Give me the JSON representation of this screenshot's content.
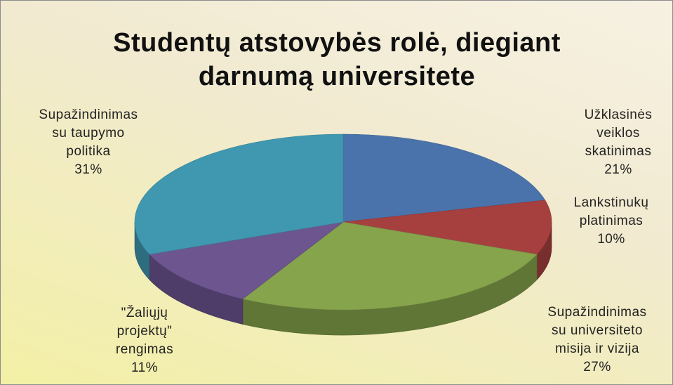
{
  "chart_data": {
    "type": "pie3d",
    "title": "Studentų atstovybės rolė, diegiant darnumą universitete",
    "categories": [
      "Užklasinės veiklos skatinimas",
      "Lankstinukų platinimas",
      "Supažindinimas su universiteto misija ir vizija",
      "\"Žaliųjų projektų\" rengimas",
      "Supažindinimas su taupymo politika"
    ],
    "values": [
      21,
      10,
      27,
      11,
      31
    ],
    "value_labels": [
      "21%",
      "10%",
      "27%",
      "11%",
      "31%"
    ],
    "colors": [
      "#4a73ab",
      "#a6403e",
      "#86a44c",
      "#6d5590",
      "#3f98b0"
    ]
  }
}
